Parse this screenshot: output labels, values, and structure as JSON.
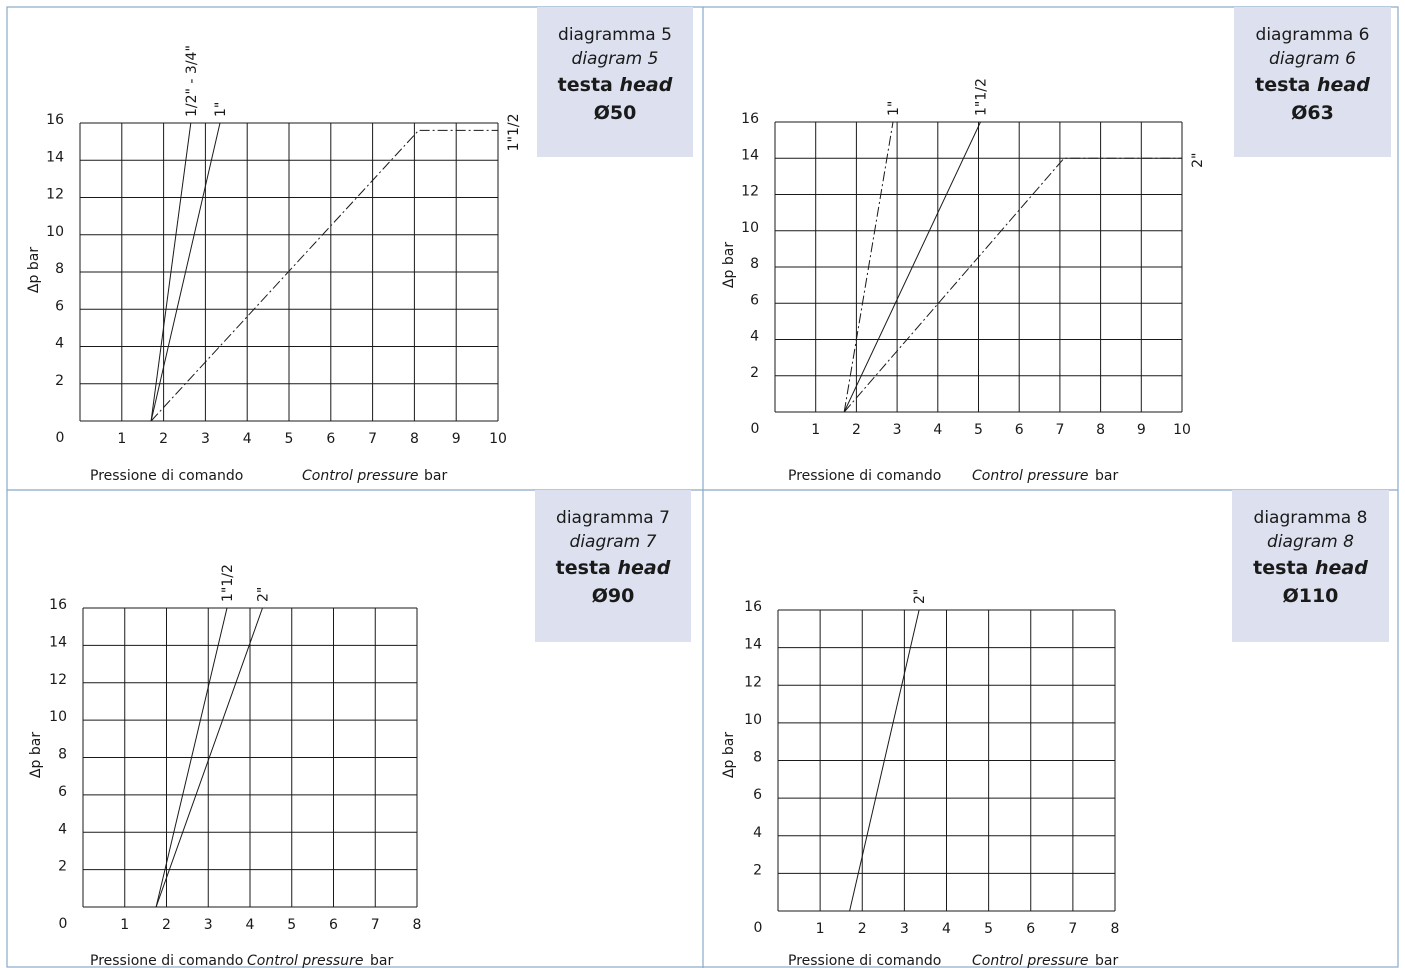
{
  "colors": {
    "frame": "#8aa8c8",
    "caption_bg": "#dde1ef",
    "ink": "#1a1a1a"
  },
  "chart_data": [
    {
      "type": "line",
      "caption": {
        "line1": "diagramma 5",
        "line2": "diagram 5",
        "line3_a": "testa",
        "line3_b": "head",
        "line4": "Ø50"
      },
      "ylabel": "Δp bar",
      "xlabel_a": "Pressione di comando",
      "xlabel_b": "Control pressure",
      "xlabel_c": "bar",
      "xlim": [
        0,
        10
      ],
      "ylim": [
        0,
        16
      ],
      "xticks": [
        "1",
        "2",
        "3",
        "4",
        "5",
        "6",
        "7",
        "8",
        "9",
        "10"
      ],
      "yticks": [
        "2",
        "4",
        "6",
        "8",
        "10",
        "12",
        "14",
        "16"
      ],
      "origin_label": "0",
      "grid": true,
      "series": [
        {
          "name": "1/2\" - 3/4\"",
          "style": "solid",
          "x": [
            1.7,
            2.65
          ],
          "y": [
            0,
            16
          ]
        },
        {
          "name": "1\"",
          "style": "solid",
          "x": [
            1.7,
            3.35
          ],
          "y": [
            0,
            16
          ]
        },
        {
          "name": "1\"1/2",
          "style": "dashdot",
          "x": [
            1.7,
            8.1,
            10.0
          ],
          "y": [
            0,
            15.6,
            15.6
          ]
        }
      ]
    },
    {
      "type": "line",
      "caption": {
        "line1": "diagramma 6",
        "line2": "diagram 6",
        "line3_a": "testa",
        "line3_b": "head",
        "line4": "Ø63"
      },
      "ylabel": "Δp bar",
      "xlabel_a": "Pressione di comando",
      "xlabel_b": "Control pressure",
      "xlabel_c": "bar",
      "xlim": [
        0,
        10
      ],
      "ylim": [
        0,
        16
      ],
      "xticks": [
        "1",
        "2",
        "3",
        "4",
        "5",
        "6",
        "7",
        "8",
        "9",
        "10"
      ],
      "yticks": [
        "2",
        "4",
        "6",
        "8",
        "10",
        "12",
        "14",
        "16"
      ],
      "origin_label": "0",
      "grid": true,
      "series": [
        {
          "name": "1\"",
          "style": "dashdot",
          "x": [
            1.7,
            2.9
          ],
          "y": [
            0,
            16
          ]
        },
        {
          "name": "1\"1/2",
          "style": "solid",
          "x": [
            1.7,
            5.05
          ],
          "y": [
            0,
            16
          ]
        },
        {
          "name": "2\"",
          "style": "dashdot",
          "x": [
            1.7,
            7.1,
            10.0
          ],
          "y": [
            0,
            14,
            14
          ]
        }
      ]
    },
    {
      "type": "line",
      "caption": {
        "line1": "diagramma 7",
        "line2": "diagram 7",
        "line3_a": "testa",
        "line3_b": "head",
        "line4": "Ø90"
      },
      "ylabel": "Δp bar",
      "xlabel_a": "Pressione di comando",
      "xlabel_b": "Control pressure",
      "xlabel_c": "bar",
      "xlim": [
        0,
        8
      ],
      "ylim": [
        0,
        16
      ],
      "xticks": [
        "1",
        "2",
        "3",
        "4",
        "5",
        "6",
        "7",
        "8"
      ],
      "yticks": [
        "2",
        "4",
        "6",
        "8",
        "10",
        "12",
        "14",
        "16"
      ],
      "origin_label": "0",
      "grid": true,
      "series": [
        {
          "name": "1\"1/2",
          "style": "solid",
          "x": [
            1.75,
            3.45
          ],
          "y": [
            0,
            16
          ]
        },
        {
          "name": "2\"",
          "style": "solid",
          "x": [
            1.75,
            4.3
          ],
          "y": [
            0,
            16
          ]
        }
      ]
    },
    {
      "type": "line",
      "caption": {
        "line1": "diagramma 8",
        "line2": "diagram 8",
        "line3_a": "testa",
        "line3_b": "head",
        "line4": "Ø110"
      },
      "ylabel": "Δp bar",
      "xlabel_a": "Pressione di comando",
      "xlabel_b": "Control pressure",
      "xlabel_c": "bar",
      "xlim": [
        0,
        8
      ],
      "ylim": [
        0,
        16
      ],
      "xticks": [
        "1",
        "2",
        "3",
        "4",
        "5",
        "6",
        "7",
        "8"
      ],
      "yticks": [
        "2",
        "4",
        "6",
        "8",
        "10",
        "12",
        "14",
        "16"
      ],
      "origin_label": "0",
      "grid": true,
      "series": [
        {
          "name": "2\"",
          "style": "solid",
          "x": [
            1.7,
            3.35
          ],
          "y": [
            0,
            16
          ]
        }
      ]
    }
  ]
}
